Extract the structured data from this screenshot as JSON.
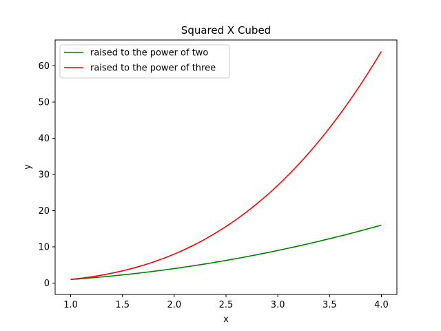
{
  "chart_data": {
    "type": "line",
    "title": "Squared X Cubed",
    "xlabel": "x",
    "ylabel": "y",
    "xlim": [
      0.85,
      4.15
    ],
    "ylim": [
      -3.15,
      67.15
    ],
    "xticks": [
      1.0,
      1.5,
      2.0,
      2.5,
      3.0,
      3.5,
      4.0
    ],
    "xtick_labels": [
      "1.0",
      "1.5",
      "2.0",
      "2.5",
      "3.0",
      "3.5",
      "4.0"
    ],
    "yticks": [
      0,
      10,
      20,
      30,
      40,
      50,
      60
    ],
    "ytick_labels": [
      "0",
      "10",
      "20",
      "30",
      "40",
      "50",
      "60"
    ],
    "grid": false,
    "legend_position": "top-left",
    "series": [
      {
        "name": "raised to the power of two",
        "color": "#008000",
        "x": [
          1.0,
          1.25,
          1.5,
          1.75,
          2.0,
          2.25,
          2.5,
          2.75,
          3.0,
          3.25,
          3.5,
          3.75,
          4.0
        ],
        "y": [
          1.0,
          1.5625,
          2.25,
          3.0625,
          4.0,
          5.0625,
          6.25,
          7.5625,
          9.0,
          10.5625,
          12.25,
          14.0625,
          16.0
        ]
      },
      {
        "name": "raised to the power of three",
        "color": "#ff0000",
        "x": [
          1.0,
          1.25,
          1.5,
          1.75,
          2.0,
          2.25,
          2.5,
          2.75,
          3.0,
          3.25,
          3.5,
          3.75,
          4.0
        ],
        "y": [
          1.0,
          1.953,
          3.375,
          5.359,
          8.0,
          11.391,
          15.625,
          20.797,
          27.0,
          34.328,
          42.875,
          52.734,
          64.0
        ]
      }
    ]
  }
}
